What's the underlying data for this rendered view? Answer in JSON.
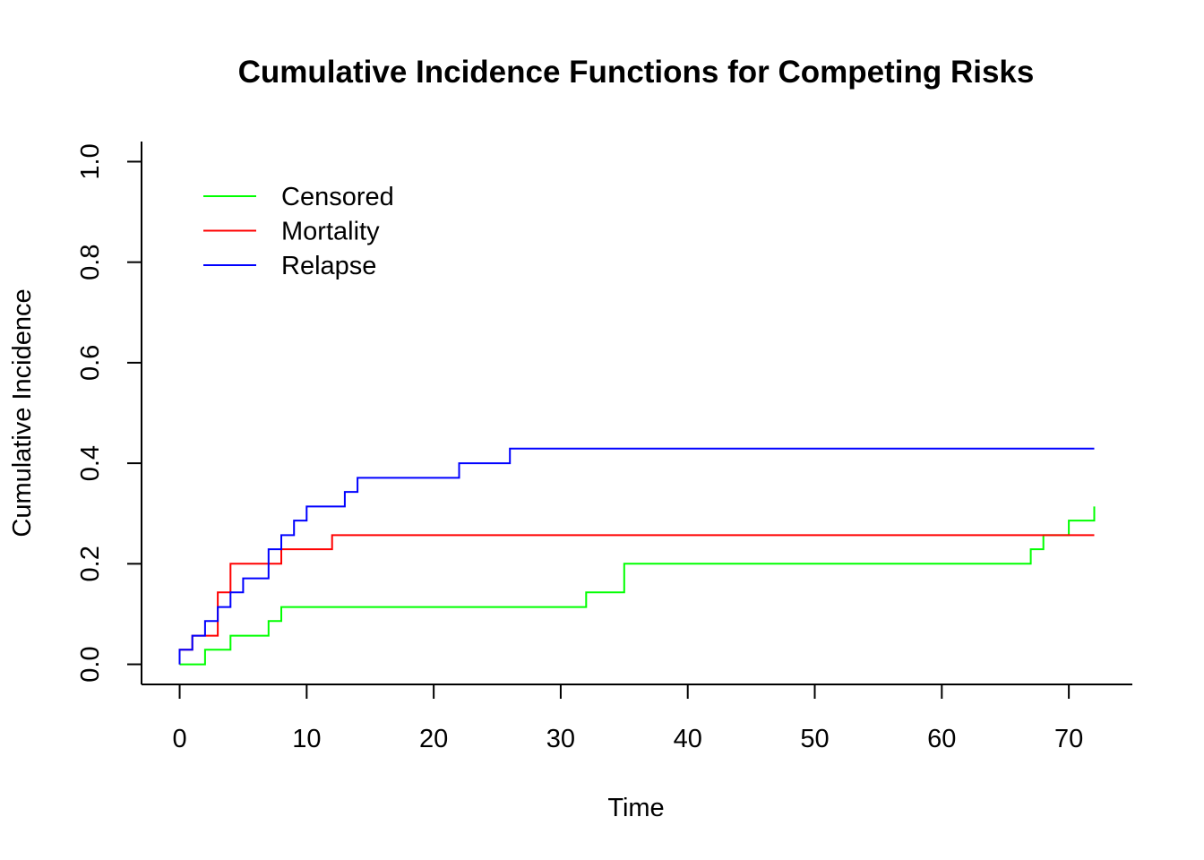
{
  "chart_data": {
    "type": "line",
    "step": true,
    "title": "Cumulative Incidence Functions for Competing Risks",
    "xlabel": "Time",
    "ylabel": "Cumulative Incidence",
    "xlim": [
      -3,
      75
    ],
    "ylim": [
      -0.04,
      1.04
    ],
    "x_ticks": [
      0,
      10,
      20,
      30,
      40,
      50,
      60,
      70
    ],
    "x_tick_labels": [
      "0",
      "10",
      "20",
      "30",
      "40",
      "50",
      "60",
      "70"
    ],
    "y_ticks": [
      0.0,
      0.2,
      0.4,
      0.6,
      0.8,
      1.0
    ],
    "y_tick_labels": [
      "0.0",
      "0.2",
      "0.4",
      "0.6",
      "0.8",
      "1.0"
    ],
    "grid": false,
    "legend_position": "top-left",
    "series": [
      {
        "name": "Censored",
        "color": "#00ff00",
        "x": [
          0,
          2,
          4,
          7,
          8,
          32,
          35,
          67,
          68,
          70,
          72
        ],
        "y": [
          0.0,
          0.029,
          0.057,
          0.086,
          0.114,
          0.143,
          0.2,
          0.229,
          0.257,
          0.286,
          0.314
        ]
      },
      {
        "name": "Mortality",
        "color": "#ff0000",
        "x": [
          0,
          1,
          3,
          4,
          8,
          12,
          72
        ],
        "y": [
          0.029,
          0.057,
          0.143,
          0.2,
          0.229,
          0.257,
          0.257
        ]
      },
      {
        "name": "Relapse",
        "color": "#0000ff",
        "x": [
          0,
          1,
          2,
          3,
          4,
          5,
          7,
          8,
          9,
          10,
          13,
          14,
          22,
          26,
          72
        ],
        "y": [
          0.029,
          0.057,
          0.086,
          0.114,
          0.143,
          0.171,
          0.229,
          0.257,
          0.286,
          0.314,
          0.343,
          0.371,
          0.4,
          0.429,
          0.429
        ]
      }
    ]
  }
}
